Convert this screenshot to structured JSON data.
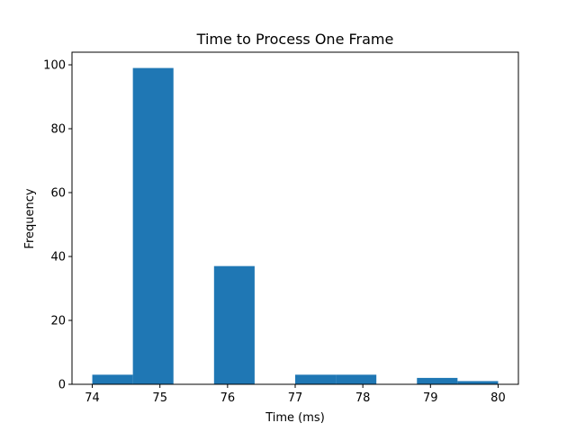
{
  "chart_data": {
    "type": "histogram",
    "title": "Time to Process One Frame",
    "x_label": "Time (ms)",
    "y_label": "Frequency",
    "bins": [
      74,
      74.6,
      75.2,
      75.8,
      76.4,
      77.0,
      77.6,
      78.2,
      78.8,
      79.4,
      80
    ],
    "values": [
      3,
      99,
      0,
      37,
      0,
      3,
      3,
      0,
      2,
      1
    ],
    "color": "#1f77b4",
    "xlim": [
      73.7,
      80.3
    ],
    "xticks": [
      74,
      75,
      76,
      77,
      78,
      79,
      80
    ],
    "ylim": [
      0,
      103.95
    ],
    "yticks": [
      0,
      20,
      40,
      60,
      80,
      100
    ],
    "grid": false
  }
}
